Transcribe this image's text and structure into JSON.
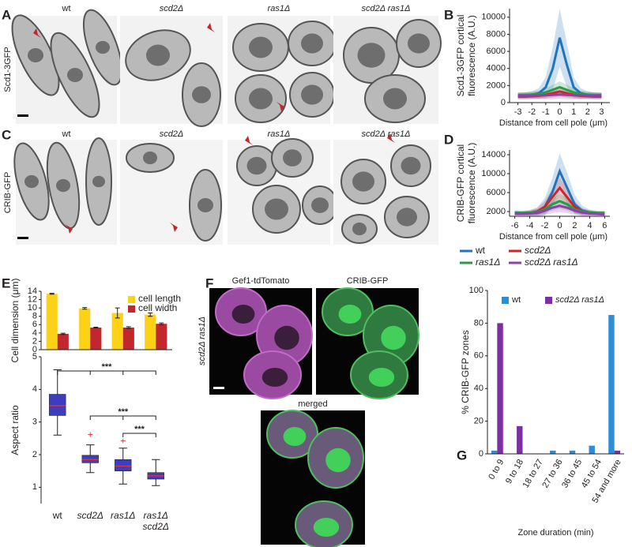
{
  "panel_labels": [
    "A",
    "B",
    "C",
    "D",
    "E",
    "F",
    "G"
  ],
  "micrographs": {
    "columns_a": [
      "wt",
      "scd2Δ",
      "ras1Δ",
      "scd2Δ ras1Δ"
    ],
    "columns_c": [
      "wt",
      "scd2Δ",
      "ras1Δ",
      "scd2Δ ras1Δ"
    ],
    "rows": [
      "Scd1-3GFP",
      "CRIB-GFP"
    ],
    "f_channels": [
      "Gef1-tdTomato",
      "CRIB-GFP",
      "merged"
    ],
    "f_strain": "scd2Δ ras1Δ"
  },
  "chart_data": [
    {
      "type": "line",
      "ylabel": "Scd1-3GFP cortical\nfluorescence (A.U.)",
      "xlabel": "Distance from cell pole (μm)",
      "x": [
        -3,
        -2.5,
        -2,
        -1.5,
        -1,
        -0.5,
        0,
        0.5,
        1,
        1.5,
        2,
        2.5,
        3
      ],
      "xlim": [
        -3.6,
        3.6
      ],
      "xticks": [
        -3,
        -2,
        -1,
        0,
        1,
        2,
        3
      ],
      "ylim": [
        0,
        11000
      ],
      "yticks": [
        0,
        2000,
        4000,
        6000,
        8000,
        10000
      ],
      "series": [
        {
          "name": "wt",
          "color": "#1f74bb",
          "values": [
            800,
            850,
            900,
            1100,
            1800,
            4000,
            7600,
            4500,
            1800,
            1100,
            900,
            850,
            800
          ],
          "errors": [
            300,
            350,
            400,
            600,
            1200,
            2500,
            3400,
            2600,
            1200,
            600,
            400,
            350,
            300
          ]
        },
        {
          "name": "scd2Δ",
          "color": "#d2232a",
          "values": [
            700,
            700,
            750,
            800,
            900,
            1100,
            1300,
            1100,
            900,
            800,
            750,
            700,
            700
          ],
          "errors": [
            300,
            300,
            300,
            350,
            400,
            500,
            600,
            500,
            400,
            350,
            300,
            300,
            300
          ]
        },
        {
          "name": "ras1Δ",
          "color": "#2a9a48",
          "values": [
            900,
            900,
            950,
            1000,
            1200,
            1500,
            1800,
            1500,
            1200,
            1000,
            950,
            900,
            900
          ],
          "errors": [
            300,
            300,
            350,
            400,
            500,
            600,
            700,
            600,
            500,
            400,
            350,
            300,
            300
          ]
        },
        {
          "name": "scd2Δ ras1Δ",
          "color": "#8e3fa8",
          "values": [
            800,
            800,
            800,
            850,
            850,
            900,
            950,
            900,
            850,
            850,
            800,
            800,
            800
          ],
          "errors": [
            400,
            400,
            400,
            450,
            450,
            500,
            500,
            500,
            450,
            450,
            400,
            400,
            400
          ]
        }
      ]
    },
    {
      "type": "line",
      "ylabel": "CRIB-GFP cortical\nfluorescence (A.U.)",
      "xlabel": "Distance from cell pole (μm)",
      "x": [
        -6,
        -5,
        -4,
        -3,
        -2,
        -1,
        0,
        1,
        2,
        3,
        4,
        5,
        6
      ],
      "xlim": [
        -6.7,
        6.7
      ],
      "xticks": [
        -6,
        -4,
        -2,
        0,
        2,
        4,
        6
      ],
      "ylim": [
        1000,
        15000
      ],
      "yticks": [
        2000,
        6000,
        10000,
        14000
      ],
      "series": [
        {
          "name": "wt",
          "color": "#1f74bb",
          "values": [
            1800,
            1700,
            1700,
            2000,
            3000,
            6000,
            10500,
            7000,
            3500,
            2200,
            1800,
            1700,
            1600
          ],
          "errors": [
            500,
            500,
            600,
            900,
            1800,
            3000,
            3800,
            3200,
            2000,
            1000,
            600,
            500,
            500
          ]
        },
        {
          "name": "scd2Δ",
          "color": "#d2232a",
          "values": [
            1600,
            1600,
            1700,
            2000,
            3000,
            5000,
            7000,
            5000,
            3000,
            2000,
            1700,
            1600,
            1500
          ],
          "errors": [
            400,
            400,
            500,
            700,
            1200,
            1800,
            2200,
            1800,
            1200,
            700,
            500,
            400,
            400
          ]
        },
        {
          "name": "ras1Δ",
          "color": "#2a9a48",
          "values": [
            1700,
            1700,
            1700,
            1900,
            2500,
            3500,
            4200,
            3500,
            2500,
            2000,
            1800,
            1700,
            1700
          ],
          "errors": [
            400,
            400,
            500,
            600,
            900,
            1300,
            1600,
            1300,
            900,
            600,
            500,
            400,
            400
          ]
        },
        {
          "name": "scd2Δ ras1Δ",
          "color": "#8e3fa8",
          "values": [
            1500,
            1500,
            1600,
            1700,
            2200,
            2800,
            3200,
            2800,
            2200,
            1800,
            1600,
            1500,
            1400
          ],
          "errors": [
            500,
            500,
            600,
            700,
            900,
            1100,
            1300,
            1100,
            900,
            700,
            600,
            500,
            500
          ]
        }
      ]
    },
    {
      "type": "bar",
      "ylabel": "Cell dimension (μm)",
      "ylim": [
        0,
        14
      ],
      "yticks": [
        0,
        2,
        4,
        6,
        8,
        10,
        12,
        14
      ],
      "series": [
        {
          "name": "cell length",
          "color": "#fcd116",
          "values": [
            13.4,
            9.9,
            8.8,
            8.4
          ],
          "errors": [
            0.1,
            0.2,
            1.2,
            0.4
          ]
        },
        {
          "name": "cell width",
          "color": "#c1272d",
          "values": [
            3.8,
            5.3,
            5.3,
            6.2
          ],
          "errors": [
            0.15,
            0.1,
            0.2,
            0.2
          ]
        }
      ]
    },
    {
      "type": "box",
      "ylabel": "Aspect ratio",
      "categories": [
        "wt",
        "scd2Δ",
        "ras1Δ",
        "ras1Δ scd2Δ"
      ],
      "ylim": [
        0.5,
        5
      ],
      "yticks": [
        1,
        2,
        3,
        4,
        5
      ],
      "color": "#3b3fbf",
      "median_color": "#e0303a",
      "boxes": [
        {
          "min": 2.6,
          "q1": 3.2,
          "median": 3.5,
          "q3": 3.85,
          "max": 4.6,
          "outliers": []
        },
        {
          "min": 1.45,
          "q1": 1.75,
          "median": 1.85,
          "q3": 1.98,
          "max": 2.3,
          "outliers": [
            2.6
          ]
        },
        {
          "min": 1.1,
          "q1": 1.5,
          "median": 1.65,
          "q3": 1.85,
          "max": 2.2,
          "outliers": [
            2.4
          ]
        },
        {
          "min": 1.05,
          "q1": 1.25,
          "median": 1.35,
          "q3": 1.45,
          "max": 1.85,
          "outliers": []
        }
      ],
      "annotations": [
        "***",
        "***",
        "***"
      ]
    },
    {
      "type": "bar",
      "ylabel": "% CRIB-GFP zones",
      "xlabel": "Zone duration (min)",
      "categories": [
        "0 to 9",
        "9 to 18",
        "18 to 27",
        "27 to 36",
        "36 to 45",
        "45 to 54",
        "54 and more"
      ],
      "ylim": [
        0,
        100
      ],
      "yticks": [
        0,
        20,
        40,
        60,
        80,
        100
      ],
      "series": [
        {
          "name": "wt",
          "color": "#2a8fd8",
          "values": [
            2,
            0,
            0,
            2,
            2,
            5,
            85
          ]
        },
        {
          "name": "scd2Δ ras1Δ",
          "color": "#7b2fa0",
          "values": [
            80,
            17,
            0,
            0,
            0,
            0,
            2
          ]
        }
      ]
    }
  ]
}
